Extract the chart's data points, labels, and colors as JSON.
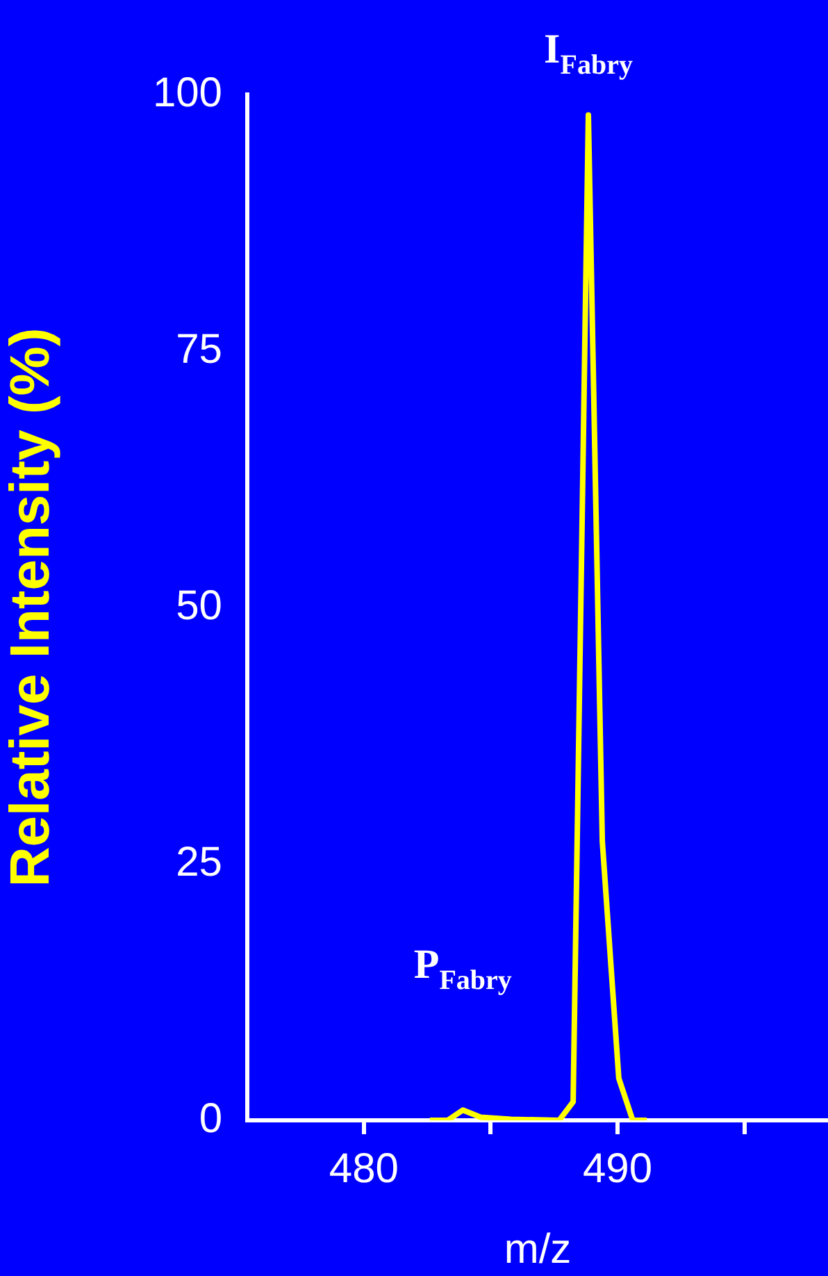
{
  "chart_data": {
    "type": "line",
    "xlabel": "m/z",
    "ylabel": "Relative Intensity (%)",
    "x": [
      482.6,
      483.3,
      483.9,
      484.6,
      485.8,
      487.7,
      488.25,
      488.85,
      489.4,
      490.05,
      490.6,
      491.15
    ],
    "series": [
      {
        "color": "#ffff00",
        "values": [
          0,
          0,
          1,
          0.3,
          0.1,
          0,
          1.8,
          98,
          27.2,
          4.1,
          0,
          0
        ]
      }
    ],
    "xlim": [
      475.4,
      498.3
    ],
    "xticks": [
      480,
      {
        "value": 485,
        "label": null
      },
      490,
      {
        "value": 495,
        "label": null
      }
    ],
    "ylim": [
      0,
      100
    ],
    "yticks": [
      0,
      25,
      50,
      75,
      100
    ],
    "annotations": [
      {
        "text": "I$_{Fabry}$",
        "x": 488.85,
        "y": 98
      },
      {
        "text": "P$_{Fabry}$",
        "x": 483.9,
        "y": 1
      }
    ],
    "grid": false,
    "legend": false,
    "marker": "none",
    "line_style": "solid"
  }
}
